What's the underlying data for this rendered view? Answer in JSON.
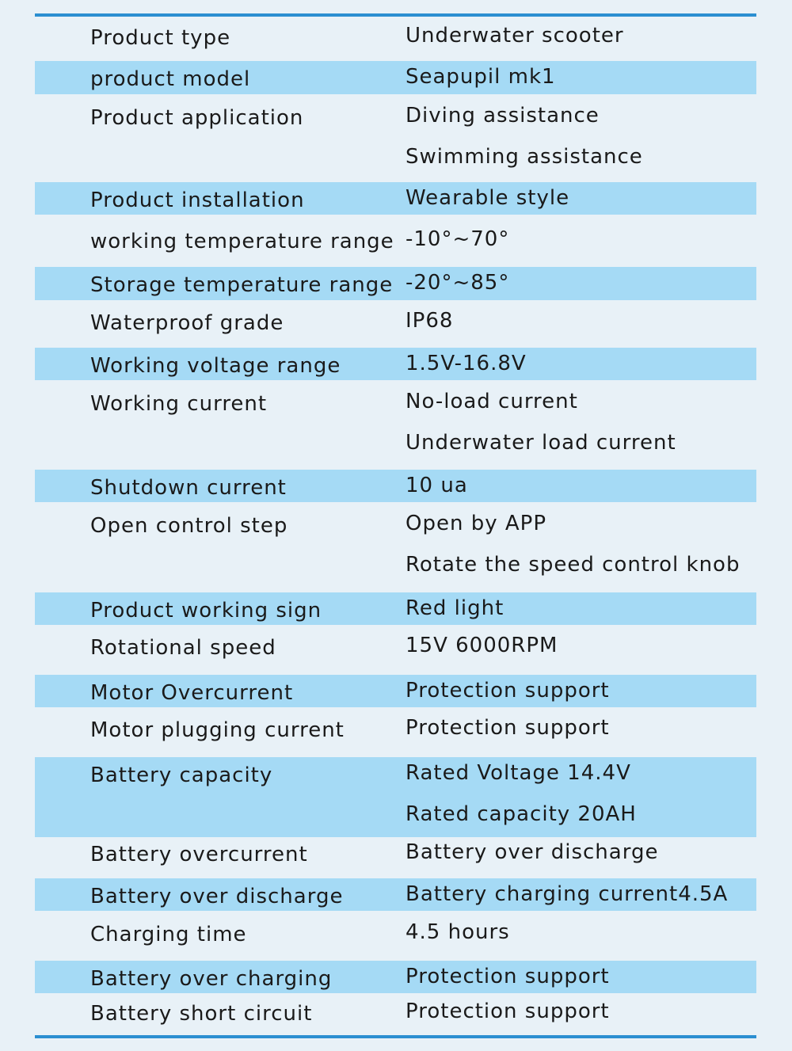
{
  "spec_table": {
    "rows": [
      {
        "name": "Product type",
        "values": [
          "Underwater scooter"
        ]
      },
      {
        "name": "product model",
        "values": [
          "Seapupil mk1"
        ]
      },
      {
        "name": "Product application",
        "values": [
          "Diving assistance",
          "Swimming assistance"
        ]
      },
      {
        "name": "Product installation",
        "values": [
          "Wearable style"
        ]
      },
      {
        "name": "working temperature range",
        "values": [
          "-10°~70°"
        ]
      },
      {
        "name": "Storage temperature range",
        "values": [
          "-20°~85°"
        ]
      },
      {
        "name": "Waterproof grade",
        "values": [
          "IP68"
        ]
      },
      {
        "name": "Working voltage range",
        "values": [
          "1.5V-16.8V"
        ]
      },
      {
        "name": "Working current",
        "values": [
          "No-load current",
          "Underwater load current"
        ]
      },
      {
        "name": "Shutdown current",
        "values": [
          "10 ua"
        ]
      },
      {
        "name": "Open control step",
        "values": [
          "Open by APP",
          "Rotate the speed control knob"
        ]
      },
      {
        "name": "Product working sign",
        "values": [
          "Red light"
        ]
      },
      {
        "name": "Rotational speed",
        "values": [
          "15V  6000RPM"
        ]
      },
      {
        "name": "Motor Overcurrent",
        "values": [
          "Protection support"
        ]
      },
      {
        "name": "Motor plugging current",
        "values": [
          "Protection support"
        ]
      },
      {
        "name": "Battery capacity",
        "values": [
          "Rated Voltage 14.4V",
          "Rated capacity 20AH"
        ]
      },
      {
        "name": "Battery overcurrent",
        "values": [
          "Battery over discharge"
        ]
      },
      {
        "name": "Battery over discharge",
        "values": [
          "Battery charging current4.5A"
        ]
      },
      {
        "name": "Charging time",
        "values": [
          "4.5 hours"
        ]
      },
      {
        "name": "Battery over charging",
        "values": [
          "Protection support"
        ]
      },
      {
        "name": "Battery short circuit",
        "values": [
          "Protection support"
        ]
      }
    ]
  },
  "colors": {
    "background": "#e8f1f7",
    "row_highlight": "#a5daf5",
    "rule": "#2b8fd1",
    "text": "#1a1a1a"
  }
}
